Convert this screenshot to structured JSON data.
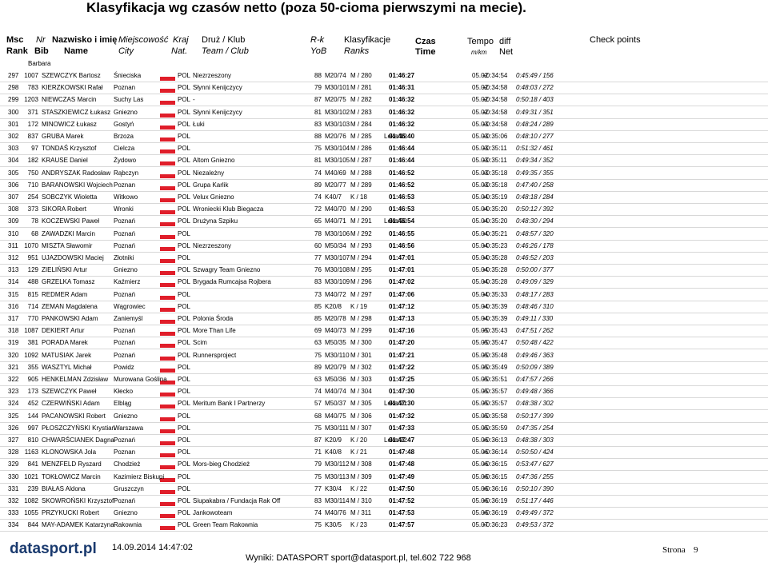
{
  "title": "Klasyfikacja wg czasów netto (poza 50-cioma pierwszymi na mecie).",
  "header": {
    "rank": [
      "Msc",
      "Rank"
    ],
    "bib": [
      "Nr",
      "Bib"
    ],
    "name": [
      "Nazwisko i imię",
      "Name"
    ],
    "city": [
      "Miejscowość",
      "City"
    ],
    "nat": [
      "Kraj",
      "Nat."
    ],
    "club": [
      "Druż / Klub",
      "Team / Club"
    ],
    "yob": [
      "R-k",
      "YoB"
    ],
    "ranks": [
      "Klasyfikacje",
      "Ranks"
    ],
    "time": [
      "Czas",
      "Time"
    ],
    "pace": [
      "Tempo",
      "m/km"
    ],
    "diff": [
      "diff",
      "Net"
    ],
    "checkpoints": "Check points"
  },
  "carryover": "Barbara",
  "rows": [
    {
      "rank": 297,
      "bib": 1007,
      "name": "SZEWCZYK Bartosz",
      "city": "Śnieciska",
      "nat": "POL",
      "club": "Niezrzeszony",
      "yob": 88,
      "cat": "M20/74",
      "sex": "M / 280",
      "time": "01:46:27",
      "pace": "05.02",
      "diff": "+0:34:54",
      "net": "0:45:49 / 156"
    },
    {
      "rank": 298,
      "bib": 783,
      "name": "KIERZKOWSKI Rafał",
      "city": "Poznan",
      "nat": "POL",
      "club": "Słynni Kenijczycy",
      "yob": 79,
      "cat": "M30/101",
      "sex": "M / 281",
      "time": "01:46:31",
      "pace": "05.02",
      "diff": "+0:34:58",
      "net": "0:48:03 / 272"
    },
    {
      "rank": 299,
      "bib": 1203,
      "name": "NIEWCZAS Marcin",
      "city": "Suchy Las",
      "nat": "POL",
      "club": "-",
      "yob": 87,
      "cat": "M20/75",
      "sex": "M / 282",
      "time": "01:46:32",
      "pace": "05.02",
      "diff": "+0:34:58",
      "net": "0:50:18 / 403"
    },
    {
      "rank": 300,
      "bib": 371,
      "name": "STASZKIEWICZ Łukasz",
      "city": "Gniezno",
      "nat": "POL",
      "club": "Słynni Kenijczycy",
      "yob": 81,
      "cat": "M30/102",
      "sex": "M / 283",
      "time": "01:46:32",
      "pace": "05.02",
      "diff": "+0:34:58",
      "net": "0:49:31 / 351"
    },
    {
      "rank": 301,
      "bib": 172,
      "name": "MINOWICZ Łukasz",
      "city": "Gostyń",
      "nat": "POL",
      "club": "Łuki",
      "yob": 83,
      "cat": "M30/103",
      "sex": "M / 284",
      "time": "01:46:32",
      "pace": "05.03",
      "diff": "+0:34:58",
      "net": "0:48:24 / 289"
    },
    {
      "rank": 302,
      "bib": 837,
      "name": "GRUBA Marek",
      "city": "Brzoza",
      "nat": "POL",
      "yob": 88,
      "cat": "M20/76",
      "sex": "M / 285",
      "note": "Leka/19",
      "time": "01:46:40",
      "pace": "05.03",
      "diff": "+0:35:06",
      "net": "0:48:10 / 277"
    },
    {
      "rank": 303,
      "bib": 97,
      "name": "TONDAŚ Krzysztof",
      "city": "Cielcza",
      "nat": "POL",
      "yob": 75,
      "cat": "M30/104",
      "sex": "M / 286",
      "time": "01:46:44",
      "pace": "05.03",
      "diff": "+0:35:11",
      "net": "0:51:32 / 461"
    },
    {
      "rank": 304,
      "bib": 182,
      "name": "KRAUSE Daniel",
      "city": "Żydowo",
      "nat": "POL",
      "club": "Altom Gniezno",
      "yob": 81,
      "cat": "M30/105",
      "sex": "M / 287",
      "time": "01:46:44",
      "pace": "05.03",
      "diff": "+0:35:11",
      "net": "0:49:34 / 352"
    },
    {
      "rank": 305,
      "bib": 750,
      "name": "ANDRYSZAK Radosław",
      "city": "Rąbczyn",
      "nat": "POL",
      "club": "Niezależny",
      "yob": 74,
      "cat": "M40/69",
      "sex": "M / 288",
      "time": "01:46:52",
      "pace": "05.03",
      "diff": "+0:35:18",
      "net": "0:49:35 / 355"
    },
    {
      "rank": 306,
      "bib": 710,
      "name": "BARANOWSKI Wojciech",
      "city": "Poznan",
      "nat": "POL",
      "club": "Grupa Karlik",
      "yob": 89,
      "cat": "M20/77",
      "sex": "M / 289",
      "time": "01:46:52",
      "pace": "05.03",
      "diff": "+0:35:18",
      "net": "0:47:40 / 258"
    },
    {
      "rank": 307,
      "bib": 254,
      "name": "SOBCZYK Wioletta",
      "city": "Witkowo",
      "nat": "POL",
      "club": "Velux Gniezno",
      "yob": 74,
      "cat": "K40/7",
      "sex": "K / 18",
      "time": "01:46:53",
      "pace": "05.04",
      "diff": "+0:35:19",
      "net": "0:48:18 / 284"
    },
    {
      "rank": 308,
      "bib": 373,
      "name": "SIKORA Robert",
      "city": "Wronki",
      "nat": "POL",
      "club": "Wroniecki Klub Biegacza",
      "yob": 72,
      "cat": "M40/70",
      "sex": "M / 290",
      "time": "01:46:53",
      "pace": "05.04",
      "diff": "+0:35:20",
      "net": "0:50:12 / 392"
    },
    {
      "rank": 309,
      "bib": 78,
      "name": "KOCZEWSKI Paweł",
      "city": "Poznań",
      "nat": "POL",
      "club": "Drużyna Szpiku",
      "yob": 65,
      "cat": "M40/71",
      "sex": "M / 291",
      "note": "Leka/20",
      "time": "01:46:54",
      "pace": "05.04",
      "diff": "+0:35:20",
      "net": "0:48:30 / 294"
    },
    {
      "rank": 310,
      "bib": 68,
      "name": "ZAWADZKI Marcin",
      "city": "Poznań",
      "nat": "POL",
      "yob": 78,
      "cat": "M30/106",
      "sex": "M / 292",
      "time": "01:46:55",
      "pace": "05.04",
      "diff": "+0:35:21",
      "net": "0:48:57 / 320"
    },
    {
      "rank": 311,
      "bib": 1070,
      "name": "MISZTA Sławomir",
      "city": "Poznań",
      "nat": "POL",
      "club": "Niezrzeszony",
      "yob": 60,
      "cat": "M50/34",
      "sex": "M / 293",
      "time": "01:46:56",
      "pace": "05.04",
      "diff": "+0:35:23",
      "net": "0:46:26 / 178"
    },
    {
      "rank": 312,
      "bib": 951,
      "name": "UJAZDOWSKI Maciej",
      "city": "Złotniki",
      "nat": "POL",
      "yob": 77,
      "cat": "M30/107",
      "sex": "M / 294",
      "time": "01:47:01",
      "pace": "05.04",
      "diff": "+0:35:28",
      "net": "0:46:52 / 203"
    },
    {
      "rank": 313,
      "bib": 129,
      "name": "ZIELIŃSKI Artur",
      "city": "Gniezno",
      "nat": "POL",
      "club": "Szwagry Team Gniezno",
      "yob": 76,
      "cat": "M30/108",
      "sex": "M / 295",
      "time": "01:47:01",
      "pace": "05.04",
      "diff": "+0:35:28",
      "net": "0:50:00 / 377"
    },
    {
      "rank": 314,
      "bib": 488,
      "name": "GRZELKA Tomasz",
      "city": "Kaźmierz",
      "nat": "POL",
      "club": "Brygada Rumcajsa Rojbera",
      "yob": 83,
      "cat": "M30/109",
      "sex": "M / 296",
      "time": "01:47:02",
      "pace": "05.04",
      "diff": "+0:35:28",
      "net": "0:49:09 / 329"
    },
    {
      "rank": 315,
      "bib": 815,
      "name": "REDMER Adam",
      "city": "Poznań",
      "nat": "POL",
      "yob": 73,
      "cat": "M40/72",
      "sex": "M / 297",
      "time": "01:47:06",
      "pace": "05.04",
      "diff": "+0:35:33",
      "net": "0:48:17 / 283"
    },
    {
      "rank": 316,
      "bib": 714,
      "name": "ZEMAN Magdalena",
      "city": "Wągrowiec",
      "nat": "POL",
      "yob": 85,
      "cat": "K20/8",
      "sex": "K / 19",
      "time": "01:47:12",
      "pace": "05.04",
      "diff": "+0:35:39",
      "net": "0:48:46 / 310"
    },
    {
      "rank": 317,
      "bib": 770,
      "name": "PANKOWSKI Adam",
      "city": "Zaniemyśl",
      "nat": "POL",
      "club": "Polonia Środa",
      "yob": 85,
      "cat": "M20/78",
      "sex": "M / 298",
      "time": "01:47:13",
      "pace": "05.04",
      "diff": "+0:35:39",
      "net": "0:49:11 / 330"
    },
    {
      "rank": 318,
      "bib": 1087,
      "name": "DEKIERT Artur",
      "city": "Poznań",
      "nat": "POL",
      "club": "More Than Life",
      "yob": 69,
      "cat": "M40/73",
      "sex": "M / 299",
      "time": "01:47:16",
      "pace": "05.05",
      "diff": "+0:35:43",
      "net": "0:47:51 / 262"
    },
    {
      "rank": 319,
      "bib": 381,
      "name": "PORADA Marek",
      "city": "Poznań",
      "nat": "POL",
      "club": "Scim",
      "yob": 63,
      "cat": "M50/35",
      "sex": "M / 300",
      "time": "01:47:20",
      "pace": "05.05",
      "diff": "+0:35:47",
      "net": "0:50:48 / 422"
    },
    {
      "rank": 320,
      "bib": 1092,
      "name": "MATUSIAK Jarek",
      "city": "Poznań",
      "nat": "POL",
      "club": "Runnersproject",
      "yob": 75,
      "cat": "M30/110",
      "sex": "M / 301",
      "time": "01:47:21",
      "pace": "05.05",
      "diff": "+0:35:48",
      "net": "0:49:46 / 363"
    },
    {
      "rank": 321,
      "bib": 355,
      "name": "WASZTYL Michał",
      "city": "Powidz",
      "nat": "POL",
      "yob": 89,
      "cat": "M20/79",
      "sex": "M / 302",
      "time": "01:47:22",
      "pace": "05.05",
      "diff": "+0:35:49",
      "net": "0:50:09 / 389"
    },
    {
      "rank": 322,
      "bib": 905,
      "name": "HENKELMAN Zdzisław",
      "city": "Murowana Goślina",
      "nat": "POL",
      "yob": 63,
      "cat": "M50/36",
      "sex": "M / 303",
      "time": "01:47:25",
      "pace": "05.05",
      "diff": "+0:35:51",
      "net": "0:47:57 / 266"
    },
    {
      "rank": 323,
      "bib": 173,
      "name": "SZEWCZYK Paweł",
      "city": "Kłecko",
      "nat": "POL",
      "yob": 74,
      "cat": "M40/74",
      "sex": "M / 304",
      "time": "01:47:30",
      "pace": "05.05",
      "diff": "+0:35:57",
      "net": "0:49:48 / 366"
    },
    {
      "rank": 324,
      "bib": 452,
      "name": "CZERWIŃSKI Adam",
      "city": "Elbląg",
      "nat": "POL",
      "club": "Meritum Bank I Partnerzy",
      "yob": 57,
      "cat": "M50/37",
      "sex": "M / 305",
      "note": "Leka/21",
      "time": "01:47:30",
      "pace": "05.05",
      "diff": "+0:35:57",
      "net": "0:48:38 / 302"
    },
    {
      "rank": 325,
      "bib": 144,
      "name": "PACANOWSKI Robert",
      "city": "Gniezno",
      "nat": "POL",
      "yob": 68,
      "cat": "M40/75",
      "sex": "M / 306",
      "time": "01:47:32",
      "pace": "05.05",
      "diff": "+0:35:58",
      "net": "0:50:17 / 399"
    },
    {
      "rank": 326,
      "bib": 997,
      "name": "PŁOSZCZYŃSKI Krystian",
      "city": "Warszawa",
      "nat": "POL",
      "yob": 75,
      "cat": "M30/111",
      "sex": "M / 307",
      "time": "01:47:33",
      "pace": "05.05",
      "diff": "+0:35:59",
      "net": "0:47:35 / 254"
    },
    {
      "rank": 327,
      "bib": 810,
      "name": "CHWARŚCIANEK Dagna",
      "city": "Poznań",
      "nat": "POL",
      "yob": 87,
      "cat": "K20/9",
      "sex": "K / 20",
      "note": "Leka/22",
      "time": "01:47:47",
      "pace": "05.06",
      "diff": "+0:36:13",
      "net": "0:48:38 / 303"
    },
    {
      "rank": 328,
      "bib": 1163,
      "name": "KLONOWSKA Jola",
      "city": "Poznan",
      "nat": "POL",
      "yob": 71,
      "cat": "K40/8",
      "sex": "K / 21",
      "time": "01:47:48",
      "pace": "05.06",
      "diff": "+0:36:14",
      "net": "0:50:50 / 424"
    },
    {
      "rank": 329,
      "bib": 841,
      "name": "MENZFELD Ryszard",
      "city": "Chodzież",
      "nat": "POL",
      "club": "Mors-bieg Chodzież",
      "yob": 79,
      "cat": "M30/112",
      "sex": "M / 308",
      "time": "01:47:48",
      "pace": "05.06",
      "diff": "+0:36:15",
      "net": "0:53:47 / 627"
    },
    {
      "rank": 330,
      "bib": 1021,
      "name": "TOKŁOWICZ Marcin",
      "city": "Kazimierz Biskupi",
      "nat": "POL",
      "yob": 75,
      "cat": "M30/113",
      "sex": "M / 309",
      "time": "01:47:49",
      "pace": "05.06",
      "diff": "+0:36:15",
      "net": "0:47:36 / 255"
    },
    {
      "rank": 331,
      "bib": 239,
      "name": "BIAŁAS Aldona",
      "city": "Gruszczyn",
      "nat": "POL",
      "yob": 77,
      "cat": "K30/4",
      "sex": "K / 22",
      "time": "01:47:50",
      "pace": "05.06",
      "diff": "+0:36:16",
      "net": "0:50:10 / 390"
    },
    {
      "rank": 332,
      "bib": 1082,
      "name": "SKOWROŃSKI Krzysztof",
      "city": "Poznań",
      "nat": "POL",
      "club": "Siupakabra / Fundacja Rak Off",
      "yob": 83,
      "cat": "M30/114",
      "sex": "M / 310",
      "time": "01:47:52",
      "pace": "05.06",
      "diff": "+0:36:19",
      "net": "0:51:17 / 446"
    },
    {
      "rank": 333,
      "bib": 1055,
      "name": "PRZYKUCKI Robert",
      "city": "Gniezno",
      "nat": "POL",
      "club": "Jankowoteam",
      "yob": 74,
      "cat": "M40/76",
      "sex": "M / 311",
      "time": "01:47:53",
      "pace": "05.06",
      "diff": "+0:36:19",
      "net": "0:49:49 / 372"
    },
    {
      "rank": 334,
      "bib": 844,
      "name": "MAY-ADAMEK Katarzyna",
      "city": "Rakownia",
      "nat": "POL",
      "club": "Green Team Rakownia",
      "yob": 75,
      "cat": "K30/5",
      "sex": "K / 23",
      "time": "01:47:57",
      "pace": "05.07",
      "diff": "+0:36:23",
      "net": "0:49:53 / 372"
    }
  ],
  "footer": {
    "logo": "datasport.pl",
    "timestamp": "14.09.2014 14:47:02",
    "contact": "Wyniki: DATASPORT sport@datasport.pl, tel.602 722 968",
    "page_label": "Strona",
    "page_number": 9
  }
}
